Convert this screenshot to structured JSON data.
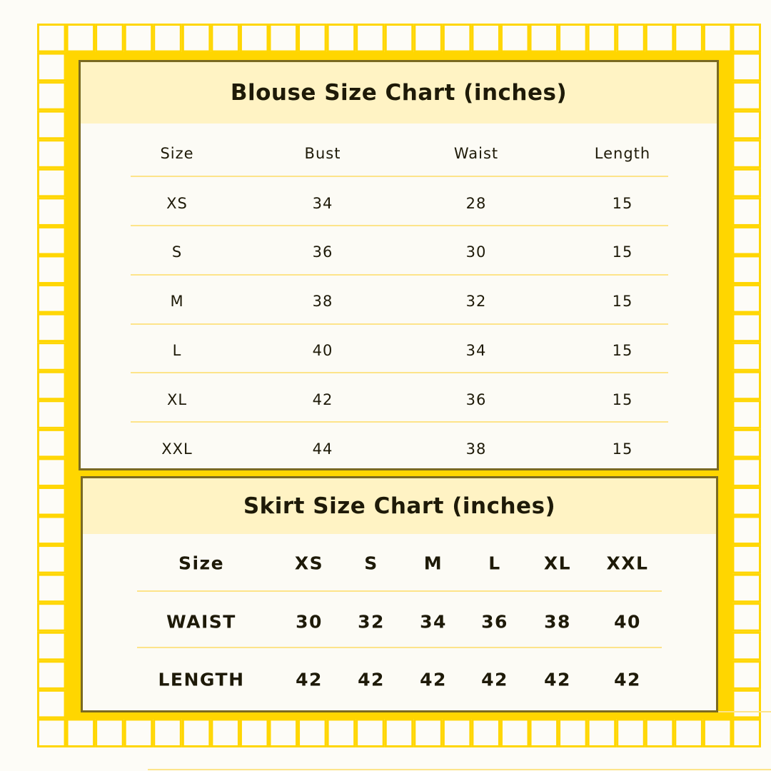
{
  "colors": {
    "grid": "#ffd600",
    "header_fill": "#fff3c4",
    "border": "#7a6a22",
    "rule": "#fde48a"
  },
  "blouse": {
    "title": "Blouse Size Chart (inches)",
    "columns": [
      "Size",
      "Bust",
      "Waist",
      "Length"
    ],
    "rows": [
      [
        "XS",
        "34",
        "28",
        "15"
      ],
      [
        "S",
        "36",
        "30",
        "15"
      ],
      [
        "M",
        "38",
        "32",
        "15"
      ],
      [
        "L",
        "40",
        "34",
        "15"
      ],
      [
        "XL",
        "42",
        "36",
        "15"
      ],
      [
        "XXL",
        "44",
        "38",
        "15"
      ]
    ]
  },
  "skirt": {
    "title": "Skirt Size Chart (inches)",
    "columns": [
      "Size",
      "XS",
      "S",
      "M",
      "L",
      "XL",
      "XXL"
    ],
    "rows": [
      [
        "WAIST",
        "30",
        "32",
        "34",
        "36",
        "38",
        "40"
      ],
      [
        "LENGTH",
        "42",
        "42",
        "42",
        "42",
        "42",
        "42"
      ]
    ]
  }
}
